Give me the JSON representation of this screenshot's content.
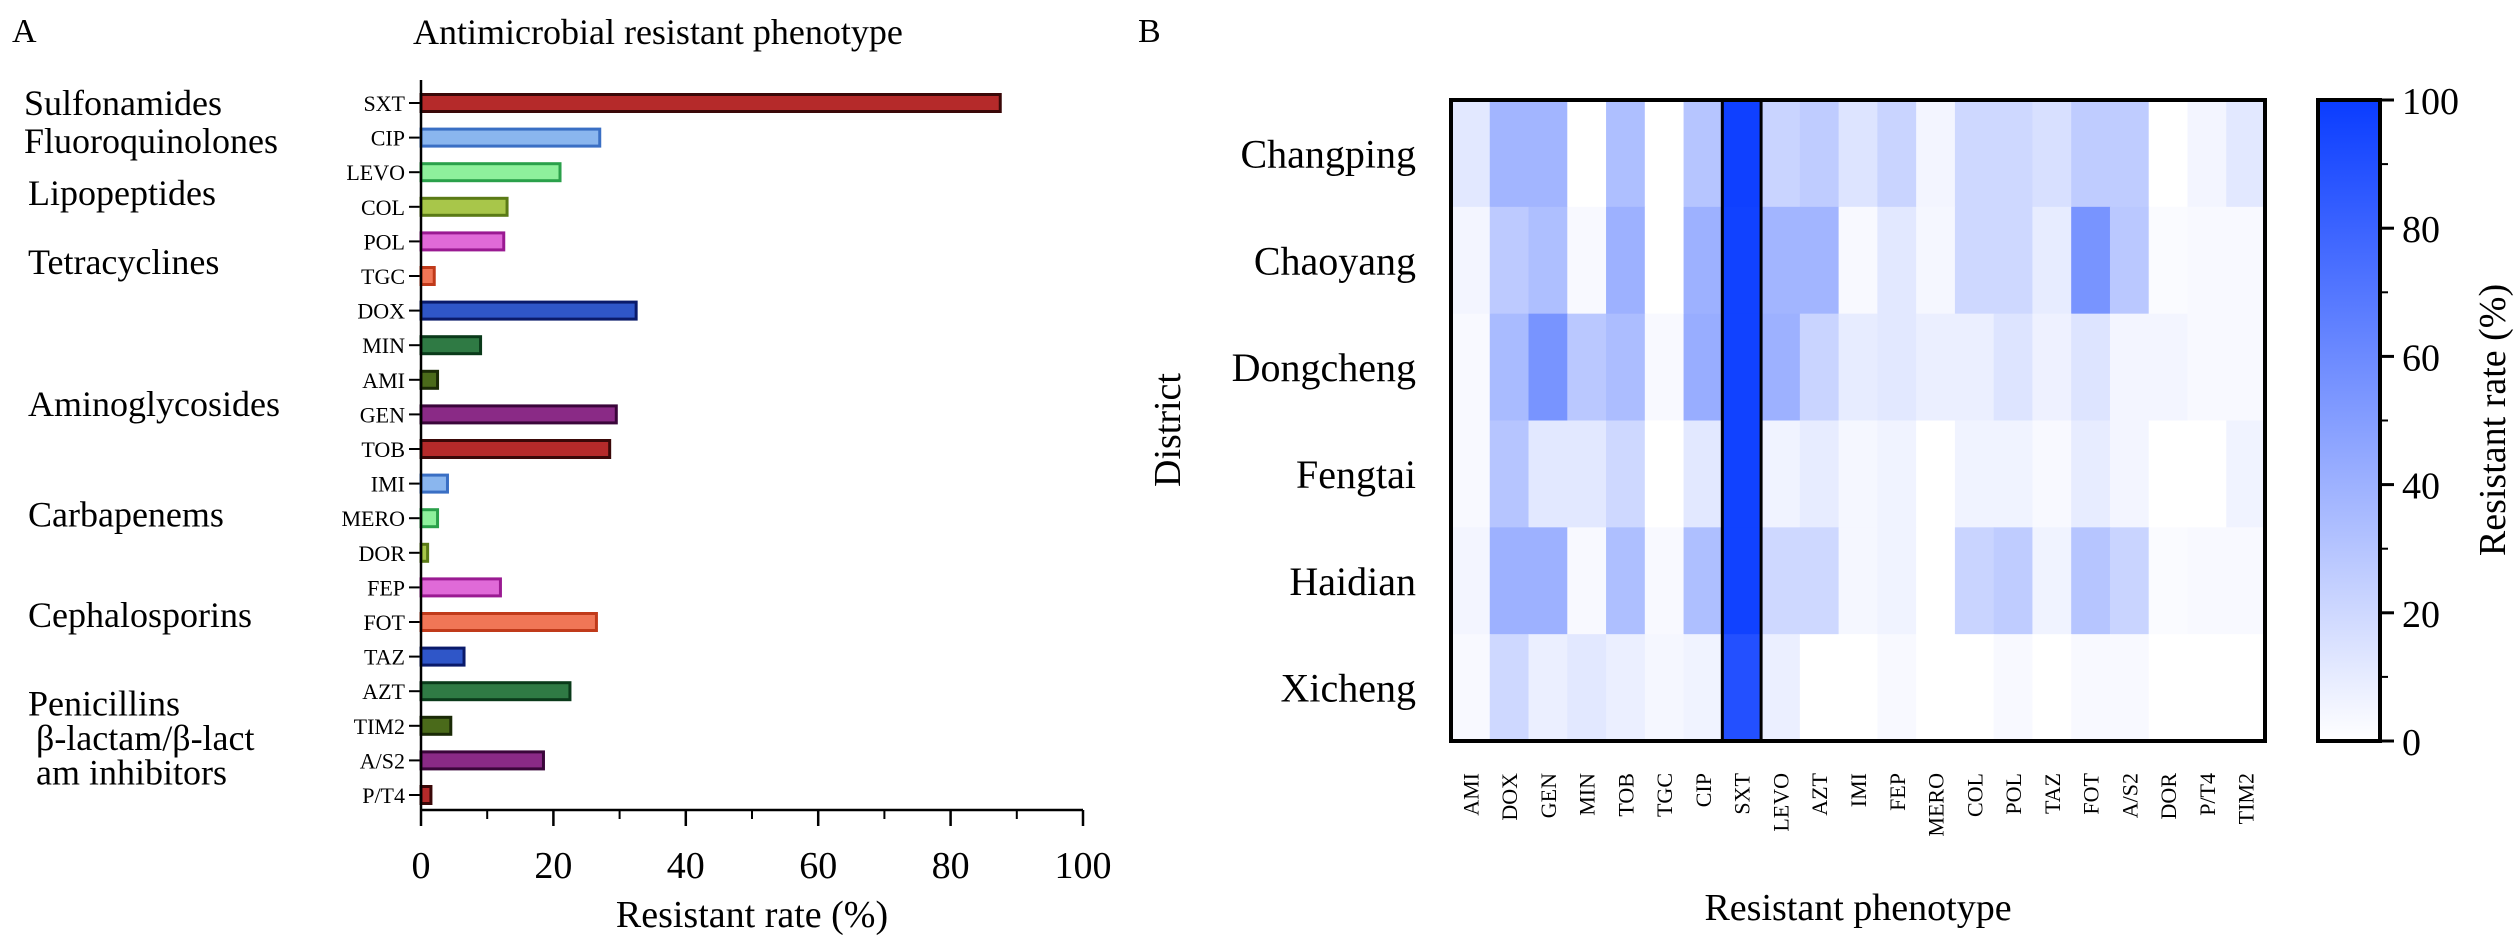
{
  "panels": {
    "a_label": "A",
    "b_label": "B"
  },
  "chart_data": [
    {
      "type": "bar",
      "orientation": "horizontal",
      "title": "Antimicrobial resistant phenotype",
      "xlabel": "Resistant rate (%)",
      "xlim": [
        0,
        100
      ],
      "xticks": [
        "0",
        "20",
        "40",
        "60",
        "80",
        "100"
      ],
      "categories": [
        "SXT",
        "CIP",
        "LEVO",
        "COL",
        "POL",
        "TGC",
        "DOX",
        "MIN",
        "AMI",
        "GEN",
        "TOB",
        "IMI",
        "MERO",
        "DOR",
        "FEP",
        "FOT",
        "TAZ",
        "AZT",
        "TIM2",
        "A/S2",
        "P/T4"
      ],
      "values": [
        87.5,
        27,
        21,
        13,
        12.5,
        2,
        32.5,
        9,
        2.5,
        29.5,
        28.5,
        4,
        2.5,
        1,
        12,
        26.5,
        6.5,
        22.5,
        4.5,
        18.5,
        1.5
      ],
      "bar_colors": [
        "#b52a2a",
        "#8ab6ee",
        "#8ef09c",
        "#a8c64a",
        "#e06ad8",
        "#f07656",
        "#2f56c8",
        "#2f7a44",
        "#4a6a1a",
        "#8a2a86",
        "#b52a2a",
        "#8ab6ee",
        "#8ef09c",
        "#a8c64a",
        "#e06ad8",
        "#f07656",
        "#2f56c8",
        "#2f7a44",
        "#4a6a1a",
        "#8a2a86",
        "#b52a2a"
      ],
      "edge_colors": [
        "#3a0808",
        "#3a6fc4",
        "#2aa04a",
        "#5a7a16",
        "#9a1a92",
        "#c03a1a",
        "#0a1a6a",
        "#0a3a1a",
        "#1a2a06",
        "#3a063a",
        "#3a0808",
        "#3a6fc4",
        "#2aa04a",
        "#5a7a16",
        "#9a1a92",
        "#c03a1a",
        "#0a1a6a",
        "#0a3a1a",
        "#1a2a06",
        "#3a063a",
        "#3a0808"
      ],
      "group_labels": [
        "Sulfonamides",
        "Fluoroquinolones",
        "Lipopeptides",
        "Tetracyclines",
        "Aminoglycosides",
        "Carbapenems",
        "Cephalosporins",
        "Penicillins",
        "β-lactam/β-lact",
        "am inhibitors"
      ],
      "group_anchor_rows": [
        0,
        1.1,
        2.6,
        4.6,
        8.7,
        11.9,
        14.8,
        17.35,
        18.35,
        19.35
      ]
    },
    {
      "type": "heatmap",
      "xlabel": "Resistant phenotype",
      "ylabel": "District",
      "x_categories": [
        "AMI",
        "DOX",
        "GEN",
        "MIN",
        "TOB",
        "TGC",
        "CIP",
        "SXT",
        "LEVO",
        "AZT",
        "IMI",
        "FEP",
        "MERO",
        "COL",
        "POL",
        "TAZ",
        "FOT",
        "A/S2",
        "DOR",
        "P/T4",
        "TIM2"
      ],
      "y_categories": [
        "Changping",
        "Chaoyang",
        "Dongcheng",
        "Fengtai",
        "Haidian",
        "Xicheng"
      ],
      "values": [
        [
          12,
          38,
          38,
          0,
          33,
          0,
          30,
          98,
          22,
          26,
          14,
          22,
          5,
          20,
          20,
          16,
          26,
          26,
          0,
          5,
          12
        ],
        [
          5,
          27,
          33,
          3,
          40,
          0,
          40,
          97,
          38,
          38,
          3,
          12,
          4,
          20,
          20,
          10,
          55,
          28,
          2,
          3,
          3
        ],
        [
          3,
          35,
          55,
          28,
          34,
          3,
          42,
          97,
          40,
          22,
          10,
          12,
          8,
          8,
          14,
          7,
          14,
          5,
          5,
          3,
          3
        ],
        [
          3,
          30,
          12,
          12,
          20,
          0,
          12,
          97,
          6,
          10,
          4,
          6,
          0,
          6,
          6,
          3,
          10,
          5,
          0,
          0,
          6
        ],
        [
          5,
          40,
          40,
          3,
          33,
          3,
          33,
          97,
          20,
          20,
          4,
          6,
          0,
          22,
          26,
          6,
          30,
          22,
          2,
          3,
          3
        ],
        [
          3,
          20,
          8,
          12,
          8,
          4,
          6,
          90,
          8,
          0,
          0,
          3,
          0,
          0,
          3,
          0,
          3,
          3,
          0,
          0,
          0
        ]
      ],
      "colorbar": {
        "label": "Resistant rate (%)",
        "range": [
          0,
          100
        ],
        "ticks": [
          "0",
          "20",
          "40",
          "60",
          "80",
          "100"
        ],
        "low_color": "#ffffff",
        "high_color": "#0a3cff"
      }
    }
  ]
}
